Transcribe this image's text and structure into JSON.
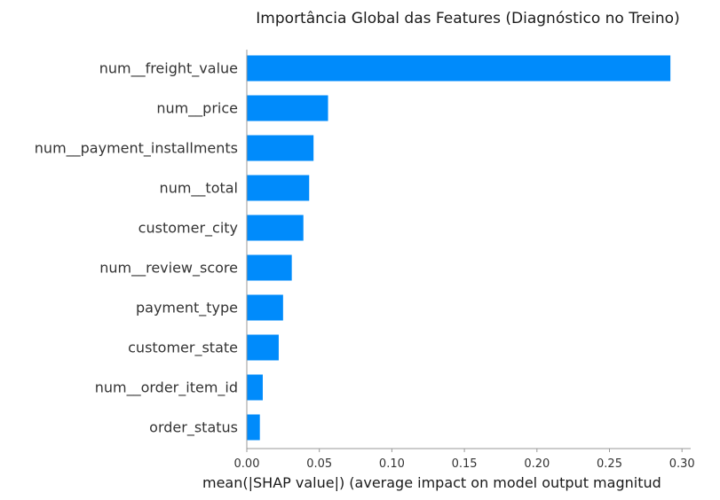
{
  "chart_data": {
    "type": "bar",
    "orientation": "horizontal",
    "title": "Importância Global das Features (Diagnóstico no Treino)",
    "xlabel": "mean(|SHAP value|) (average impact on model output magnitud",
    "ylabel": "",
    "xlim": [
      0,
      0.306
    ],
    "xticks": [
      "0.00",
      "0.05",
      "0.10",
      "0.15",
      "0.20",
      "0.25",
      "0.30"
    ],
    "categories": [
      "num__freight_value",
      "num__price",
      "num__payment_installments",
      "num__total",
      "customer_city",
      "num__review_score",
      "payment_type",
      "customer_state",
      "num__order_item_id",
      "order_status"
    ],
    "values": [
      0.292,
      0.056,
      0.046,
      0.043,
      0.039,
      0.031,
      0.025,
      0.022,
      0.011,
      0.009
    ],
    "bar_color": "#008bfb",
    "grid": false
  }
}
